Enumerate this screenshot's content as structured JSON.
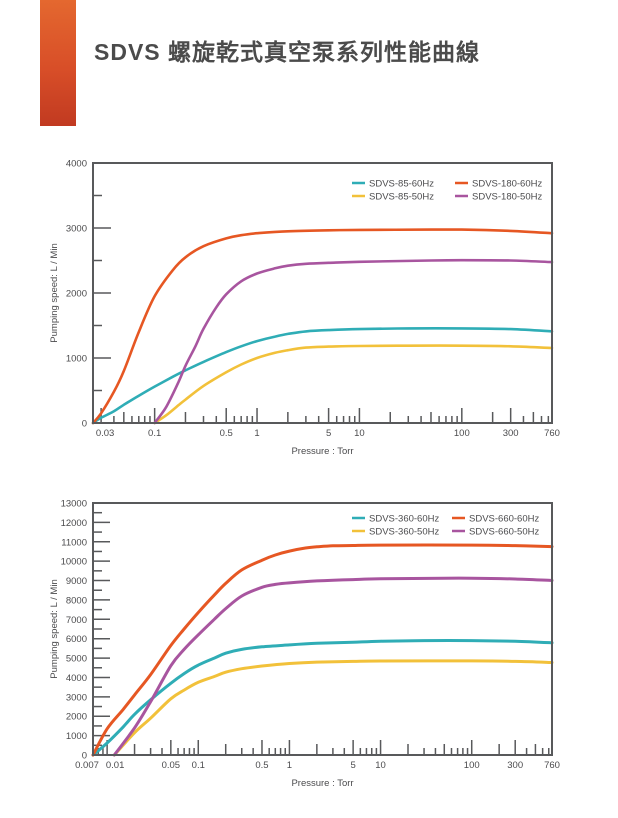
{
  "page": {
    "title": "SDVS 螺旋乾式真空泵系列性能曲線"
  },
  "colors": {
    "accent_bar_top": "#e4682f",
    "accent_bar_bottom": "#c13a21",
    "frame": "#58595b",
    "text": "#4b4b4d",
    "teal": "#2fadb6",
    "yellow": "#f2c13a",
    "orange": "#e65723",
    "purple": "#a8559f"
  },
  "chart_data": [
    {
      "type": "line",
      "x_scale": "log",
      "xlabel": "Pressure : Torr",
      "ylabel": "Pumping speed: L / Min",
      "x_range": [
        0.025,
        760
      ],
      "ylim": [
        0,
        4000
      ],
      "y_tick_step": 1000,
      "y_minor_step": 500,
      "x_tick_values": [
        0.03,
        0.1,
        0.5,
        1,
        5,
        10,
        100,
        300,
        760
      ],
      "x_tick_labels": [
        "0.03",
        "0.1",
        "0.5",
        "1",
        "5",
        "10",
        "100",
        "300",
        "760"
      ],
      "grid": false,
      "legend_position": "top-right-inside",
      "series": [
        {
          "name": "SDVS-85-60Hz",
          "color": "#2fadb6",
          "points": [
            [
              0.025,
              0
            ],
            [
              0.03,
              80
            ],
            [
              0.04,
              180
            ],
            [
              0.05,
              280
            ],
            [
              0.07,
              420
            ],
            [
              0.1,
              560
            ],
            [
              0.15,
              710
            ],
            [
              0.2,
              810
            ],
            [
              0.3,
              940
            ],
            [
              0.5,
              1090
            ],
            [
              0.7,
              1180
            ],
            [
              1,
              1260
            ],
            [
              1.5,
              1330
            ],
            [
              2,
              1370
            ],
            [
              3,
              1410
            ],
            [
              5,
              1430
            ],
            [
              10,
              1445
            ],
            [
              30,
              1455
            ],
            [
              100,
              1455
            ],
            [
              300,
              1445
            ],
            [
              760,
              1410
            ]
          ]
        },
        {
          "name": "SDVS-85-50Hz",
          "color": "#f2c13a",
          "points": [
            [
              0.1,
              0
            ],
            [
              0.13,
              120
            ],
            [
              0.17,
              270
            ],
            [
              0.2,
              360
            ],
            [
              0.3,
              570
            ],
            [
              0.5,
              780
            ],
            [
              0.7,
              900
            ],
            [
              1,
              1000
            ],
            [
              1.5,
              1080
            ],
            [
              2,
              1120
            ],
            [
              3,
              1160
            ],
            [
              5,
              1175
            ],
            [
              10,
              1185
            ],
            [
              30,
              1190
            ],
            [
              100,
              1190
            ],
            [
              300,
              1180
            ],
            [
              760,
              1155
            ]
          ]
        },
        {
          "name": "SDVS-180-60Hz",
          "color": "#e65723",
          "points": [
            [
              0.025,
              0
            ],
            [
              0.03,
              150
            ],
            [
              0.04,
              480
            ],
            [
              0.05,
              800
            ],
            [
              0.07,
              1400
            ],
            [
              0.1,
              1950
            ],
            [
              0.15,
              2350
            ],
            [
              0.2,
              2550
            ],
            [
              0.3,
              2720
            ],
            [
              0.5,
              2840
            ],
            [
              0.7,
              2890
            ],
            [
              1,
              2920
            ],
            [
              2,
              2950
            ],
            [
              5,
              2965
            ],
            [
              10,
              2970
            ],
            [
              50,
              2975
            ],
            [
              100,
              2975
            ],
            [
              300,
              2955
            ],
            [
              760,
              2920
            ]
          ]
        },
        {
          "name": "SDVS-180-50Hz",
          "color": "#a8559f",
          "points": [
            [
              0.1,
              0
            ],
            [
              0.13,
              250
            ],
            [
              0.17,
              620
            ],
            [
              0.2,
              880
            ],
            [
              0.25,
              1180
            ],
            [
              0.3,
              1450
            ],
            [
              0.4,
              1780
            ],
            [
              0.5,
              1980
            ],
            [
              0.7,
              2180
            ],
            [
              1,
              2300
            ],
            [
              1.5,
              2380
            ],
            [
              2,
              2420
            ],
            [
              3,
              2450
            ],
            [
              5,
              2465
            ],
            [
              10,
              2480
            ],
            [
              50,
              2500
            ],
            [
              100,
              2505
            ],
            [
              300,
              2500
            ],
            [
              760,
              2475
            ]
          ]
        }
      ]
    },
    {
      "type": "line",
      "x_scale": "log",
      "xlabel": "Pressure : Torr",
      "ylabel": "Pumping speed: L / Min",
      "x_range": [
        0.007,
        760
      ],
      "ylim": [
        0,
        13000
      ],
      "y_tick_step": 1000,
      "y_minor_step": 500,
      "x_tick_values": [
        0.007,
        0.01,
        0.05,
        0.1,
        0.5,
        1,
        5,
        10,
        100,
        300,
        760
      ],
      "x_tick_labels": [
        "0.007",
        "0.01",
        "0.05",
        "0.1",
        "0.5",
        "1",
        "5",
        "10",
        "100",
        "300",
        "760"
      ],
      "grid": false,
      "legend_position": "top-right-inside",
      "series": [
        {
          "name": "SDVS-360-60Hz",
          "color": "#2fadb6",
          "points": [
            [
              0.007,
              0
            ],
            [
              0.01,
              620
            ],
            [
              0.015,
              1450
            ],
            [
              0.02,
              2100
            ],
            [
              0.03,
              2850
            ],
            [
              0.05,
              3700
            ],
            [
              0.07,
              4200
            ],
            [
              0.1,
              4640
            ],
            [
              0.15,
              5000
            ],
            [
              0.2,
              5250
            ],
            [
              0.3,
              5450
            ],
            [
              0.5,
              5580
            ],
            [
              1,
              5680
            ],
            [
              2,
              5760
            ],
            [
              5,
              5820
            ],
            [
              10,
              5870
            ],
            [
              30,
              5900
            ],
            [
              100,
              5900
            ],
            [
              300,
              5870
            ],
            [
              760,
              5790
            ]
          ]
        },
        {
          "name": "SDVS-360-50Hz",
          "color": "#f2c13a",
          "points": [
            [
              0.012,
              0
            ],
            [
              0.02,
              1150
            ],
            [
              0.03,
              1900
            ],
            [
              0.05,
              2900
            ],
            [
              0.07,
              3350
            ],
            [
              0.1,
              3750
            ],
            [
              0.15,
              4050
            ],
            [
              0.2,
              4270
            ],
            [
              0.3,
              4450
            ],
            [
              0.5,
              4590
            ],
            [
              1,
              4720
            ],
            [
              2,
              4790
            ],
            [
              5,
              4830
            ],
            [
              10,
              4850
            ],
            [
              100,
              4855
            ],
            [
              300,
              4830
            ],
            [
              760,
              4770
            ]
          ]
        },
        {
          "name": "SDVS-660-60Hz",
          "color": "#e65723",
          "points": [
            [
              0.007,
              0
            ],
            [
              0.01,
              1350
            ],
            [
              0.015,
              2350
            ],
            [
              0.02,
              3100
            ],
            [
              0.03,
              4150
            ],
            [
              0.05,
              5650
            ],
            [
              0.07,
              6500
            ],
            [
              0.1,
              7350
            ],
            [
              0.15,
              8250
            ],
            [
              0.2,
              8850
            ],
            [
              0.3,
              9550
            ],
            [
              0.5,
              10050
            ],
            [
              0.7,
              10320
            ],
            [
              1,
              10520
            ],
            [
              1.5,
              10680
            ],
            [
              2,
              10740
            ],
            [
              3,
              10790
            ],
            [
              5,
              10810
            ],
            [
              10,
              10830
            ],
            [
              100,
              10830
            ],
            [
              300,
              10800
            ],
            [
              760,
              10750
            ]
          ]
        },
        {
          "name": "SDVS-660-50Hz",
          "color": "#a8559f",
          "points": [
            [
              0.012,
              0
            ],
            [
              0.02,
              1400
            ],
            [
              0.03,
              2750
            ],
            [
              0.05,
              4600
            ],
            [
              0.07,
              5450
            ],
            [
              0.1,
              6200
            ],
            [
              0.15,
              7000
            ],
            [
              0.2,
              7550
            ],
            [
              0.3,
              8200
            ],
            [
              0.5,
              8650
            ],
            [
              0.7,
              8800
            ],
            [
              1,
              8880
            ],
            [
              2,
              8980
            ],
            [
              5,
              9050
            ],
            [
              10,
              9090
            ],
            [
              50,
              9120
            ],
            [
              100,
              9120
            ],
            [
              300,
              9080
            ],
            [
              760,
              9000
            ]
          ]
        }
      ]
    }
  ]
}
